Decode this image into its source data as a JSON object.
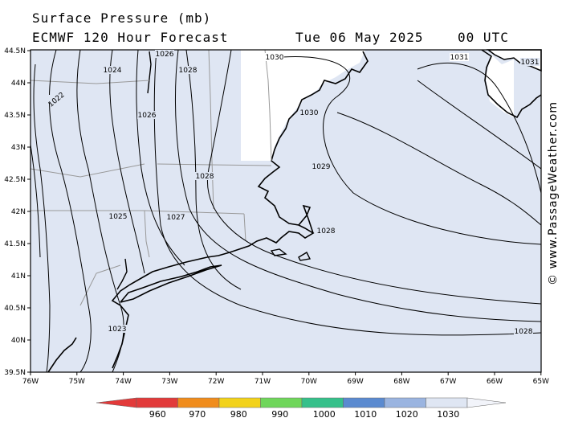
{
  "header": {
    "title": "Surface Pressure (mb)",
    "model": "ECMWF 120 Hour Forecast",
    "date": "Tue 06 May 2025",
    "time": "00 UTC"
  },
  "map": {
    "lat_labels": [
      "44.5N",
      "44N",
      "43.5N",
      "43N",
      "42.5N",
      "42N",
      "41.5N",
      "41N",
      "40.5N",
      "40N",
      "39.5N"
    ],
    "lon_labels": [
      "76W",
      "75W",
      "74W",
      "73W",
      "72W",
      "71W",
      "70W",
      "69W",
      "68W",
      "67W",
      "66W",
      "65W"
    ],
    "isobar_labels": [
      {
        "text": "1026",
        "id": "iso-1026a"
      },
      {
        "text": "1028",
        "id": "iso-1028a"
      },
      {
        "text": "1030",
        "id": "iso-1030a"
      },
      {
        "text": "1031",
        "id": "iso-1031a"
      },
      {
        "text": "1031",
        "id": "iso-1031b"
      },
      {
        "text": "1024",
        "id": "iso-1024"
      },
      {
        "text": "1022",
        "id": "iso-1022"
      },
      {
        "text": "1026",
        "id": "iso-1026b"
      },
      {
        "text": "1030",
        "id": "iso-1030b"
      },
      {
        "text": "1029",
        "id": "iso-1029"
      },
      {
        "text": "1028",
        "id": "iso-1028b"
      },
      {
        "text": "1025",
        "id": "iso-1025"
      },
      {
        "text": "1027",
        "id": "iso-1027"
      },
      {
        "text": "1028",
        "id": "iso-1028c"
      },
      {
        "text": "1023",
        "id": "iso-1023"
      },
      {
        "text": "1028",
        "id": "iso-1028d"
      }
    ],
    "land_color": "#ffffff",
    "water_color": "#dfe6f3"
  },
  "legend": {
    "labels": [
      "960",
      "970",
      "980",
      "990",
      "1000",
      "1010",
      "1020",
      "1030"
    ],
    "colors": [
      "#e23a3a",
      "#f08c1c",
      "#f2d21a",
      "#6fd65a",
      "#35c08a",
      "#5a8ad0",
      "#9ab4e0",
      "#dfe6f3"
    ]
  },
  "copyright": "© www.PassageWeather.com"
}
